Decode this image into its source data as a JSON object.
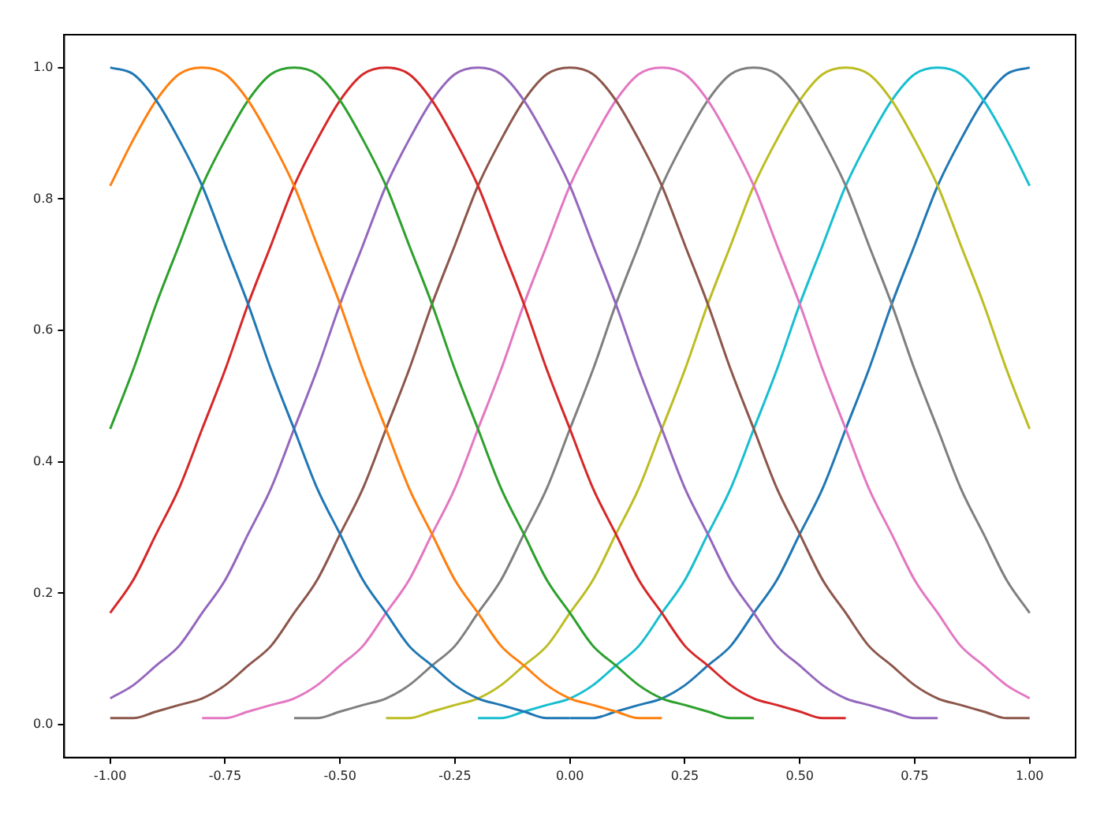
{
  "chart_data": {
    "type": "line",
    "xlim": [
      -1.1,
      1.1
    ],
    "ylim": [
      -0.05,
      1.05
    ],
    "xticks": [
      {
        "value": -1,
        "label": "-1.00"
      },
      {
        "value": -0.75,
        "label": "-0.75"
      },
      {
        "value": -0.5,
        "label": "-0.50"
      },
      {
        "value": -0.25,
        "label": "-0.25"
      },
      {
        "value": 0,
        "label": "0.00"
      },
      {
        "value": 0.25,
        "label": "0.25"
      },
      {
        "value": 0.5,
        "label": "0.50"
      },
      {
        "value": 0.75,
        "label": "0.75"
      },
      {
        "value": 1,
        "label": "1.00"
      }
    ],
    "yticks": [
      {
        "value": 0,
        "label": "0.0"
      },
      {
        "value": 0.2,
        "label": "0.2"
      },
      {
        "value": 0.4,
        "label": "0.4"
      },
      {
        "value": 0.6,
        "label": "0.6"
      },
      {
        "value": 0.8,
        "label": "0.8"
      },
      {
        "value": 1,
        "label": "1.0"
      }
    ],
    "grid": false,
    "legend": false,
    "x": [
      -1,
      -0.95,
      -0.9,
      -0.85,
      -0.8,
      -0.75,
      -0.7,
      -0.65,
      -0.6,
      -0.55,
      -0.5,
      -0.45,
      -0.4,
      -0.35,
      -0.3,
      -0.25,
      -0.2,
      -0.15,
      -0.1,
      -0.05,
      0,
      0.05,
      0.1,
      0.15,
      0.2,
      0.25,
      0.3,
      0.35,
      0.4,
      0.45,
      0.5,
      0.55,
      0.6,
      0.65,
      0.7,
      0.75,
      0.8,
      0.85,
      0.9,
      0.95,
      1
    ],
    "series": [
      {
        "color": "#1f77b4",
        "values": [
          1,
          0.99,
          0.95,
          0.89,
          0.82,
          0.73,
          0.64,
          0.54,
          0.45,
          0.36,
          0.29,
          0.22,
          0.17,
          0.12,
          0.09,
          0.06,
          0.04,
          0.03,
          0.02,
          0.01,
          0.01,
          null,
          null,
          null,
          null,
          null,
          null,
          null,
          null,
          null,
          null,
          null,
          null,
          null,
          null,
          null,
          null,
          null,
          null,
          null,
          null
        ]
      },
      {
        "color": "#ff7f0e",
        "values": [
          0.82,
          0.89,
          0.95,
          0.99,
          1,
          0.99,
          0.95,
          0.89,
          0.82,
          0.73,
          0.64,
          0.54,
          0.45,
          0.36,
          0.29,
          0.22,
          0.17,
          0.12,
          0.09,
          0.06,
          0.04,
          0.03,
          0.02,
          0.01,
          0.01,
          null,
          null,
          null,
          null,
          null,
          null,
          null,
          null,
          null,
          null,
          null,
          null,
          null,
          null,
          null,
          null
        ]
      },
      {
        "color": "#2ca02c",
        "values": [
          0.45,
          0.54,
          0.64,
          0.73,
          0.82,
          0.89,
          0.95,
          0.99,
          1,
          0.99,
          0.95,
          0.89,
          0.82,
          0.73,
          0.64,
          0.54,
          0.45,
          0.36,
          0.29,
          0.22,
          0.17,
          0.12,
          0.09,
          0.06,
          0.04,
          0.03,
          0.02,
          0.01,
          0.01,
          null,
          null,
          null,
          null,
          null,
          null,
          null,
          null,
          null,
          null,
          null,
          null
        ]
      },
      {
        "color": "#d62728",
        "values": [
          0.17,
          0.22,
          0.29,
          0.36,
          0.45,
          0.54,
          0.64,
          0.73,
          0.82,
          0.89,
          0.95,
          0.99,
          1,
          0.99,
          0.95,
          0.89,
          0.82,
          0.73,
          0.64,
          0.54,
          0.45,
          0.36,
          0.29,
          0.22,
          0.17,
          0.12,
          0.09,
          0.06,
          0.04,
          0.03,
          0.02,
          0.01,
          0.01,
          null,
          null,
          null,
          null,
          null,
          null,
          null,
          null
        ]
      },
      {
        "color": "#9467bd",
        "values": [
          0.04,
          0.06,
          0.09,
          0.12,
          0.17,
          0.22,
          0.29,
          0.36,
          0.45,
          0.54,
          0.64,
          0.73,
          0.82,
          0.89,
          0.95,
          0.99,
          1,
          0.99,
          0.95,
          0.89,
          0.82,
          0.73,
          0.64,
          0.54,
          0.45,
          0.36,
          0.29,
          0.22,
          0.17,
          0.12,
          0.09,
          0.06,
          0.04,
          0.03,
          0.02,
          0.01,
          0.01,
          null,
          null,
          null,
          null
        ]
      },
      {
        "color": "#8c564b",
        "values": [
          0.01,
          0.01,
          0.02,
          0.03,
          0.04,
          0.06,
          0.09,
          0.12,
          0.17,
          0.22,
          0.29,
          0.36,
          0.45,
          0.54,
          0.64,
          0.73,
          0.82,
          0.89,
          0.95,
          0.99,
          1,
          0.99,
          0.95,
          0.89,
          0.82,
          0.73,
          0.64,
          0.54,
          0.45,
          0.36,
          0.29,
          0.22,
          0.17,
          0.12,
          0.09,
          0.06,
          0.04,
          0.03,
          0.02,
          0.01,
          0.01
        ]
      },
      {
        "color": "#e377c2",
        "values": [
          null,
          null,
          null,
          null,
          0.01,
          0.01,
          0.02,
          0.03,
          0.04,
          0.06,
          0.09,
          0.12,
          0.17,
          0.22,
          0.29,
          0.36,
          0.45,
          0.54,
          0.64,
          0.73,
          0.82,
          0.89,
          0.95,
          0.99,
          1,
          0.99,
          0.95,
          0.89,
          0.82,
          0.73,
          0.64,
          0.54,
          0.45,
          0.36,
          0.29,
          0.22,
          0.17,
          0.12,
          0.09,
          0.06,
          0.04
        ]
      },
      {
        "color": "#7f7f7f",
        "values": [
          null,
          null,
          null,
          null,
          null,
          null,
          null,
          null,
          0.01,
          0.01,
          0.02,
          0.03,
          0.04,
          0.06,
          0.09,
          0.12,
          0.17,
          0.22,
          0.29,
          0.36,
          0.45,
          0.54,
          0.64,
          0.73,
          0.82,
          0.89,
          0.95,
          0.99,
          1,
          0.99,
          0.95,
          0.89,
          0.82,
          0.73,
          0.64,
          0.54,
          0.45,
          0.36,
          0.29,
          0.22,
          0.17
        ]
      },
      {
        "color": "#bcbd22",
        "values": [
          null,
          null,
          null,
          null,
          null,
          null,
          null,
          null,
          null,
          null,
          null,
          null,
          0.01,
          0.01,
          0.02,
          0.03,
          0.04,
          0.06,
          0.09,
          0.12,
          0.17,
          0.22,
          0.29,
          0.36,
          0.45,
          0.54,
          0.64,
          0.73,
          0.82,
          0.89,
          0.95,
          0.99,
          1,
          0.99,
          0.95,
          0.89,
          0.82,
          0.73,
          0.64,
          0.54,
          0.45
        ]
      },
      {
        "color": "#17becf",
        "values": [
          null,
          null,
          null,
          null,
          null,
          null,
          null,
          null,
          null,
          null,
          null,
          null,
          null,
          null,
          null,
          null,
          0.01,
          0.01,
          0.02,
          0.03,
          0.04,
          0.06,
          0.09,
          0.12,
          0.17,
          0.22,
          0.29,
          0.36,
          0.45,
          0.54,
          0.64,
          0.73,
          0.82,
          0.89,
          0.95,
          0.99,
          1,
          0.99,
          0.95,
          0.89,
          0.82
        ]
      },
      {
        "color": "#1f77b4",
        "values": [
          null,
          null,
          null,
          null,
          null,
          null,
          null,
          null,
          null,
          null,
          null,
          null,
          null,
          null,
          null,
          null,
          null,
          null,
          null,
          null,
          0.01,
          0.01,
          0.02,
          0.03,
          0.04,
          0.06,
          0.09,
          0.12,
          0.17,
          0.22,
          0.29,
          0.36,
          0.45,
          0.54,
          0.64,
          0.73,
          0.82,
          0.89,
          0.95,
          0.99,
          1
        ]
      }
    ]
  }
}
